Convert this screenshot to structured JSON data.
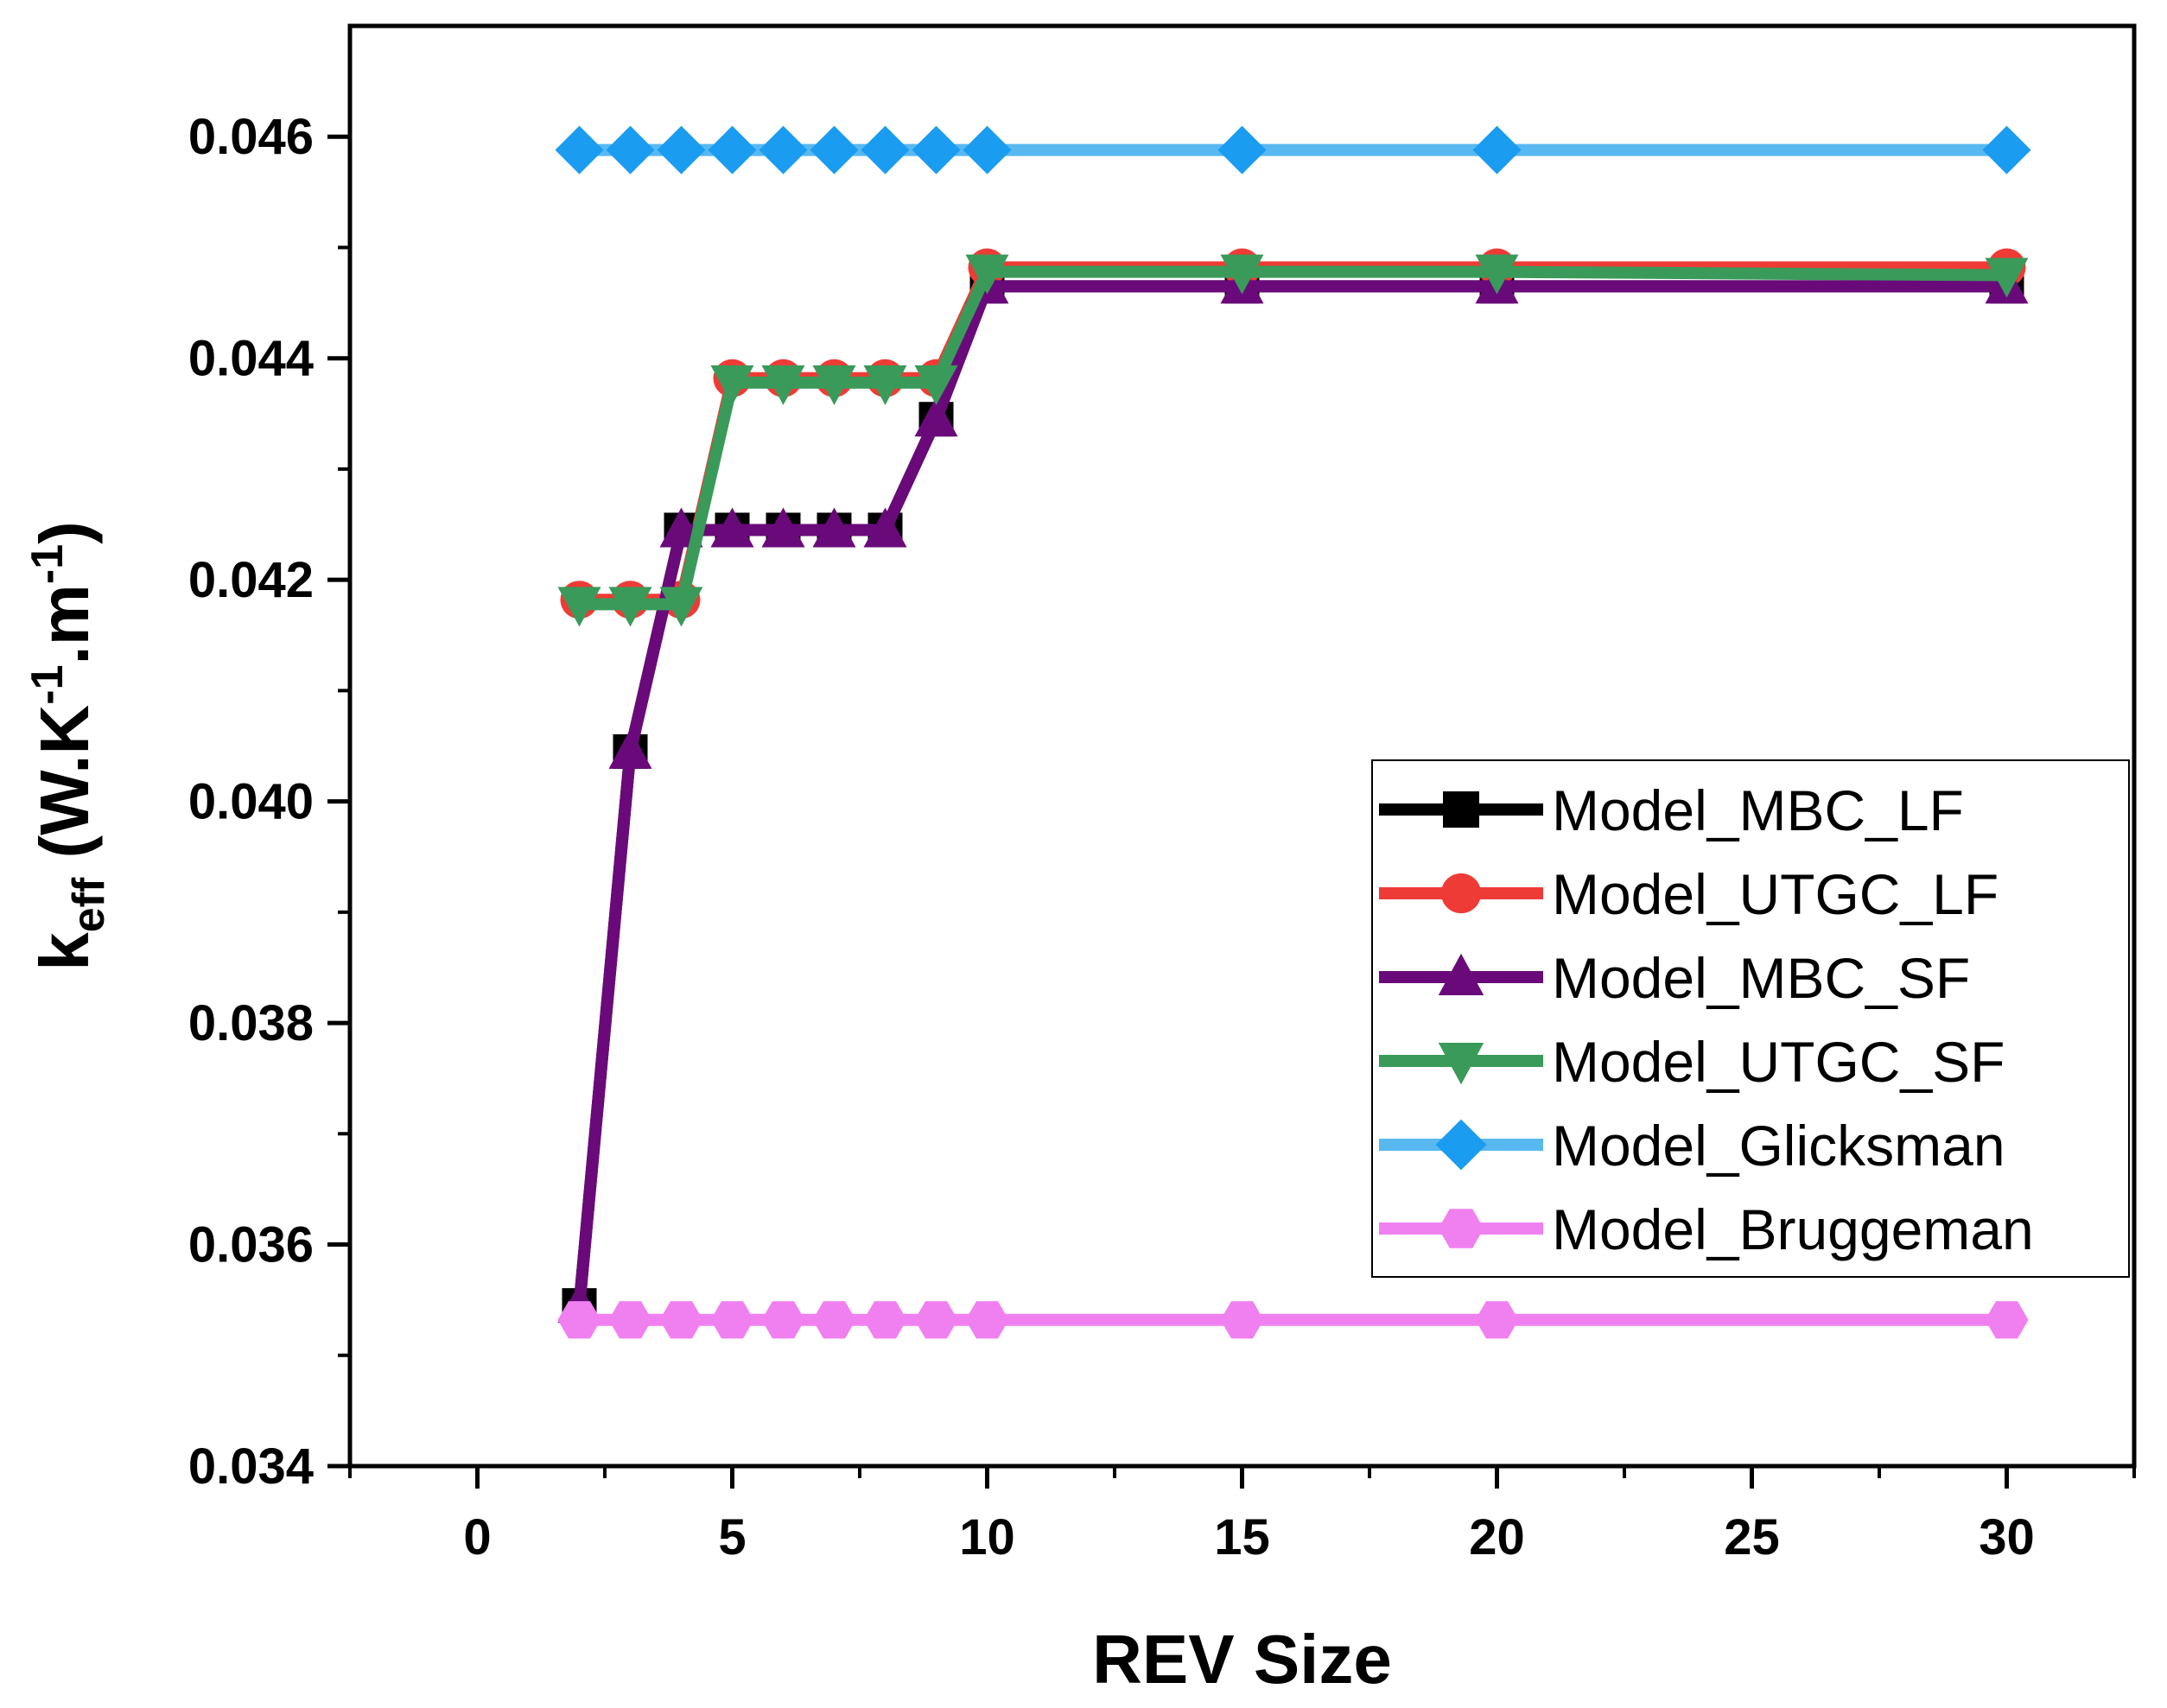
{
  "chart_data": {
    "type": "line",
    "xlabel": "REV Size",
    "ylabel": {
      "base": "k",
      "sub": "eff",
      "unit_open": " (W.K",
      "sup1": "-1",
      "unit_mid": ".m",
      "sup2": "-1",
      "unit_close": ")"
    },
    "xlim": [
      -2.5,
      32.5
    ],
    "ylim": [
      0.034,
      0.047
    ],
    "x_ticks": [
      0,
      5,
      10,
      15,
      20,
      25,
      30
    ],
    "x_tick_labels": [
      "0",
      "5",
      "10",
      "15",
      "20",
      "25",
      "30"
    ],
    "y_ticks": [
      0.034,
      0.036,
      0.038,
      0.04,
      0.042,
      0.044,
      0.046
    ],
    "y_tick_labels": [
      "0.034",
      "0.036",
      "0.038",
      "0.040",
      "0.042",
      "0.044",
      "0.046"
    ],
    "x": [
      2,
      3,
      4,
      5,
      6,
      7,
      8,
      9,
      10,
      15,
      20,
      30
    ],
    "legend_position": "lower-right",
    "series": [
      {
        "name": "Model_MBC_LF",
        "color": "#000000",
        "marker": "square",
        "values": [
          0.03545,
          0.04045,
          0.04245,
          0.04245,
          0.04245,
          0.04245,
          0.04245,
          0.04345,
          0.04465,
          0.04465,
          0.04465,
          0.04465
        ]
      },
      {
        "name": "Model_UTGC_LF",
        "color": "#ef3b36",
        "marker": "circle",
        "values": [
          0.04182,
          0.04182,
          0.04182,
          0.04382,
          0.04382,
          0.04382,
          0.04382,
          0.04382,
          0.04482,
          0.04482,
          0.04482,
          0.04482
        ]
      },
      {
        "name": "Model_MBC_SF",
        "color": "#6a0a7a",
        "marker": "triangle-up",
        "values": [
          0.03545,
          0.04045,
          0.04245,
          0.04245,
          0.04245,
          0.04245,
          0.04245,
          0.04345,
          0.04465,
          0.04465,
          0.04465,
          0.04465
        ]
      },
      {
        "name": "Model_UTGC_SF",
        "color": "#3a9a5a",
        "marker": "triangle-down",
        "values": [
          0.04178,
          0.04178,
          0.04178,
          0.04378,
          0.04378,
          0.04378,
          0.04378,
          0.04378,
          0.04478,
          0.04478,
          0.04478,
          0.04475
        ]
      },
      {
        "name": "Model_Glicksman",
        "color": "#58b8f0",
        "marker_color": "#1a9cf0",
        "marker": "diamond",
        "values": [
          0.04588,
          0.04588,
          0.04588,
          0.04588,
          0.04588,
          0.04588,
          0.04588,
          0.04588,
          0.04588,
          0.04588,
          0.04588,
          0.04588
        ]
      },
      {
        "name": "Model_Bruggeman",
        "color": "#f080f0",
        "marker": "hexagon",
        "values": [
          0.03532,
          0.03532,
          0.03532,
          0.03532,
          0.03532,
          0.03532,
          0.03532,
          0.03532,
          0.03532,
          0.03532,
          0.03532,
          0.03532
        ]
      }
    ]
  }
}
